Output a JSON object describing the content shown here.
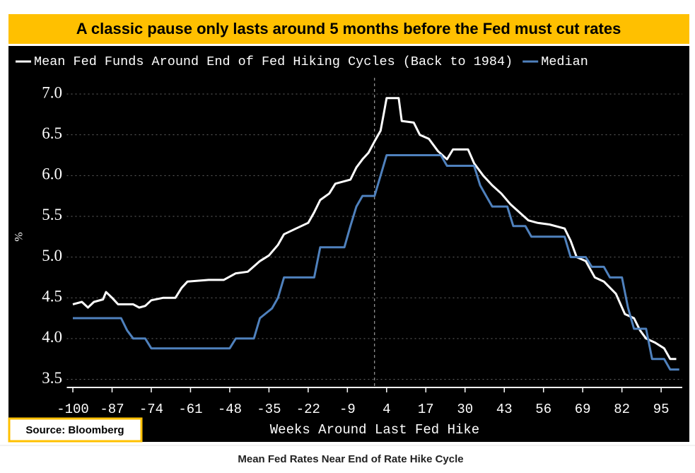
{
  "header": {
    "title": "A classic pause only lasts around 5 months before the Fed must cut rates"
  },
  "chart_data": {
    "type": "line",
    "y_label": "%",
    "x_label": "Weeks Around Last Fed Hike",
    "xlim": [
      -102,
      102
    ],
    "xticks": [
      -100,
      -87,
      -74,
      -61,
      -48,
      -35,
      -22,
      -9,
      4,
      17,
      30,
      43,
      56,
      69,
      82,
      95
    ],
    "ylim": [
      3.4,
      7.2
    ],
    "yticks": [
      3.5,
      {
        "value": 4,
        "label": "4.0"
      },
      4.5,
      {
        "value": 5,
        "label": "5.0"
      },
      5.5,
      {
        "value": 6,
        "label": "6.0"
      },
      6.5,
      {
        "value": 7,
        "label": "7.0"
      }
    ],
    "grid": true,
    "vline_x": 0,
    "series": [
      {
        "name": "Mean Fed Funds Around End of Fed Hiking Cycles (Back to 1984)",
        "color": "#ffffff",
        "x": [
          -100,
          -97,
          -95,
          -93,
          -90,
          -89,
          -87,
          -85,
          -80,
          -78,
          -76,
          -74,
          -70,
          -66,
          -64,
          -62,
          -55,
          -50,
          -46,
          -42,
          -38,
          -35,
          -32,
          -30,
          -26,
          -22,
          -20,
          -18,
          -15,
          -13,
          -8,
          -6,
          -4,
          -2,
          0,
          2,
          3,
          4,
          8,
          9,
          13,
          15,
          18,
          21,
          24,
          26,
          31,
          33,
          36,
          39,
          42,
          45,
          48,
          51,
          54,
          58,
          63,
          65,
          67,
          70,
          73,
          76,
          80,
          83,
          86,
          88,
          90,
          93,
          96,
          98,
          100
        ],
        "values": [
          4.42,
          4.45,
          4.38,
          4.45,
          4.48,
          4.57,
          4.5,
          4.42,
          4.42,
          4.38,
          4.4,
          4.47,
          4.5,
          4.5,
          4.62,
          4.7,
          4.72,
          4.72,
          4.8,
          4.82,
          4.95,
          5.02,
          5.15,
          5.28,
          5.35,
          5.42,
          5.55,
          5.7,
          5.78,
          5.9,
          5.95,
          6.1,
          6.2,
          6.28,
          6.42,
          6.55,
          6.75,
          6.95,
          6.95,
          6.67,
          6.65,
          6.5,
          6.45,
          6.3,
          6.2,
          6.32,
          6.32,
          6.15,
          6.0,
          5.88,
          5.78,
          5.65,
          5.55,
          5.45,
          5.42,
          5.4,
          5.35,
          5.2,
          5.0,
          4.95,
          4.75,
          4.7,
          4.55,
          4.3,
          4.25,
          4.1,
          4.0,
          3.95,
          3.88,
          3.75,
          3.75
        ]
      },
      {
        "name": "Median",
        "color": "#4f81bd",
        "x": [
          -100,
          -84,
          -82,
          -80,
          -76,
          -74,
          -48,
          -46,
          -40,
          -38,
          -34,
          -32,
          -30,
          -20,
          -18,
          -10,
          -8,
          -6,
          -4,
          0,
          2,
          4,
          22,
          24,
          33,
          35,
          37,
          39,
          44,
          46,
          50,
          52,
          63,
          65,
          70,
          72,
          76,
          78,
          82,
          84,
          86,
          90,
          92,
          96,
          98,
          101
        ],
        "values": [
          4.25,
          4.25,
          4.1,
          4.0,
          4.0,
          3.88,
          3.88,
          4.0,
          4.0,
          4.25,
          4.37,
          4.5,
          4.75,
          4.75,
          5.12,
          5.12,
          5.38,
          5.62,
          5.75,
          5.75,
          6.0,
          6.25,
          6.25,
          6.12,
          6.12,
          5.88,
          5.75,
          5.62,
          5.62,
          5.38,
          5.38,
          5.25,
          5.25,
          5.0,
          5.0,
          4.88,
          4.88,
          4.75,
          4.75,
          4.38,
          4.12,
          4.12,
          3.75,
          3.75,
          3.62,
          3.62
        ]
      }
    ]
  },
  "source": "Source: Bloomberg",
  "caption": "Mean Fed Rates Near End of Rate Hike Cycle"
}
